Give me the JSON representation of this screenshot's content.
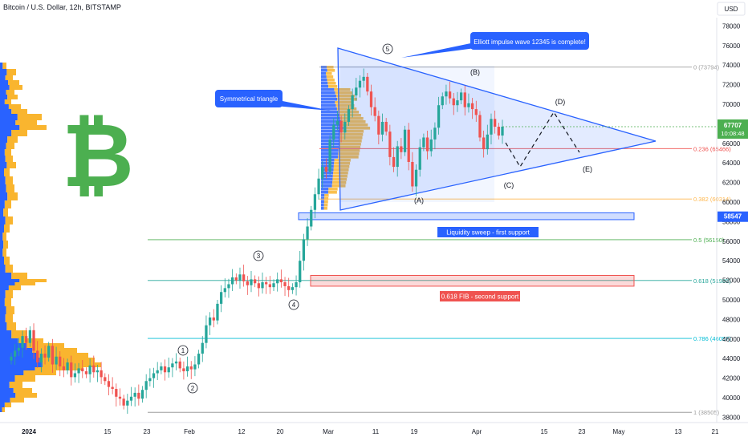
{
  "header": {
    "title": "Bitcoin / U.S. Dollar, 12h, BITSTAMP",
    "currency": "USD"
  },
  "price_tag": {
    "value": "67707",
    "countdown": "10:08:48",
    "color": "#4caf50"
  },
  "support_tag": {
    "value": "58547",
    "color": "#2962ff"
  },
  "logo": {
    "glyph": "₿",
    "color": "#4caf50"
  },
  "annotations": {
    "elliott": "Elliott impulse wave 12345 is complete!",
    "triangle": "Symmetrical triangle",
    "liquidity": "Liquidity sweep - first support",
    "fib_support": "0.618 FIB - second support"
  },
  "wave_labels": {
    "w1": "1",
    "w2": "2",
    "w3": "3",
    "w4": "4",
    "w5": "5",
    "a": "(A)",
    "b": "(B)",
    "c": "(C)",
    "d": "(D)",
    "e": "(E)"
  },
  "colors": {
    "up": "#26a69a",
    "down": "#ef5350",
    "triangle": "#2962ff",
    "volume_up": "#f9b52f",
    "volume_down": "#2962ff"
  },
  "chart_data": {
    "type": "candlestick",
    "title": "Bitcoin / U.S. Dollar, 12h, BITSTAMP",
    "x_ticks": [
      "2024",
      "15",
      "23",
      "Feb",
      "12",
      "20",
      "Mar",
      "11",
      "19",
      "Apr",
      "15",
      "23",
      "May",
      "13",
      "21"
    ],
    "y_ticks": [
      "78000",
      "76000",
      "74000",
      "72000",
      "70000",
      "68000",
      "66000",
      "64000",
      "62000",
      "60000",
      "58000",
      "56000",
      "54000",
      "52000",
      "50000",
      "48000",
      "46000",
      "44000",
      "42000",
      "40000",
      "38000"
    ],
    "ylim": [
      37500,
      79500
    ],
    "last_price": 67707,
    "fib_levels": [
      {
        "ratio": "0",
        "price": 73794,
        "label": "0 (73794)",
        "color": "#9e9e9e"
      },
      {
        "ratio": "0.236",
        "price": 65466,
        "label": "0.236 (65466)",
        "color": "#ef5350"
      },
      {
        "ratio": "0.382",
        "price": 60314,
        "label": "0.382 (60314)",
        "color": "#ffb74d"
      },
      {
        "ratio": "0.5",
        "price": 56150,
        "label": "0.5 (56150)",
        "color": "#4caf50"
      },
      {
        "ratio": "0.618",
        "price": 51985,
        "label": "0.618 (51985)",
        "color": "#26a69a"
      },
      {
        "ratio": "0.786",
        "price": 46057,
        "label": "0.786 (46057)",
        "color": "#00bcd4"
      },
      {
        "ratio": "1",
        "price": 38505,
        "label": "1 (38505)",
        "color": "#9e9e9e"
      }
    ],
    "support_zones": [
      {
        "name": "Liquidity sweep - first support",
        "low": 58200,
        "high": 58900,
        "color": "#2962ff"
      },
      {
        "name": "0.618 FIB - second support",
        "low": 51400,
        "high": 52500,
        "color": "#ef5350"
      }
    ],
    "closes": [
      44200,
      44800,
      45100,
      46300,
      45600,
      46900,
      44800,
      43600,
      44500,
      44100,
      45300,
      43400,
      44200,
      43200,
      42800,
      43600,
      42100,
      42500,
      43000,
      42700,
      42400,
      43300,
      42600,
      42800,
      42100,
      41700,
      41100,
      40900,
      40100,
      39900,
      39200,
      39700,
      40100,
      40500,
      39900,
      40800,
      41700,
      42000,
      42500,
      42800,
      43200,
      42600,
      43100,
      43500,
      43700,
      43000,
      42700,
      43200,
      42900,
      43400,
      44500,
      45600,
      47400,
      48200,
      47900,
      49600,
      50800,
      51200,
      51600,
      52300,
      52000,
      52600,
      51900,
      51500,
      52100,
      51700,
      51200,
      51800,
      51600,
      51300,
      51700,
      52100,
      51800,
      51400,
      51000,
      51300,
      51800,
      54000,
      56200,
      57500,
      59200,
      60800,
      62400,
      63600,
      63100,
      66400,
      67900,
      68300,
      67100,
      68200,
      69500,
      70900,
      71700,
      72400,
      72800,
      71300,
      69700,
      68800,
      66900,
      68200,
      67200,
      64600,
      63600,
      65700,
      65100,
      67400,
      64100,
      61600,
      63300,
      65600,
      66600,
      65200,
      66400,
      67600,
      69900,
      70800,
      71300,
      70600,
      69900,
      70400,
      71200,
      69700,
      70100,
      69500,
      68900,
      66600,
      65400,
      66900,
      68500,
      67700,
      66800,
      67707
    ],
    "x_labels_note": "price axis USD"
  }
}
